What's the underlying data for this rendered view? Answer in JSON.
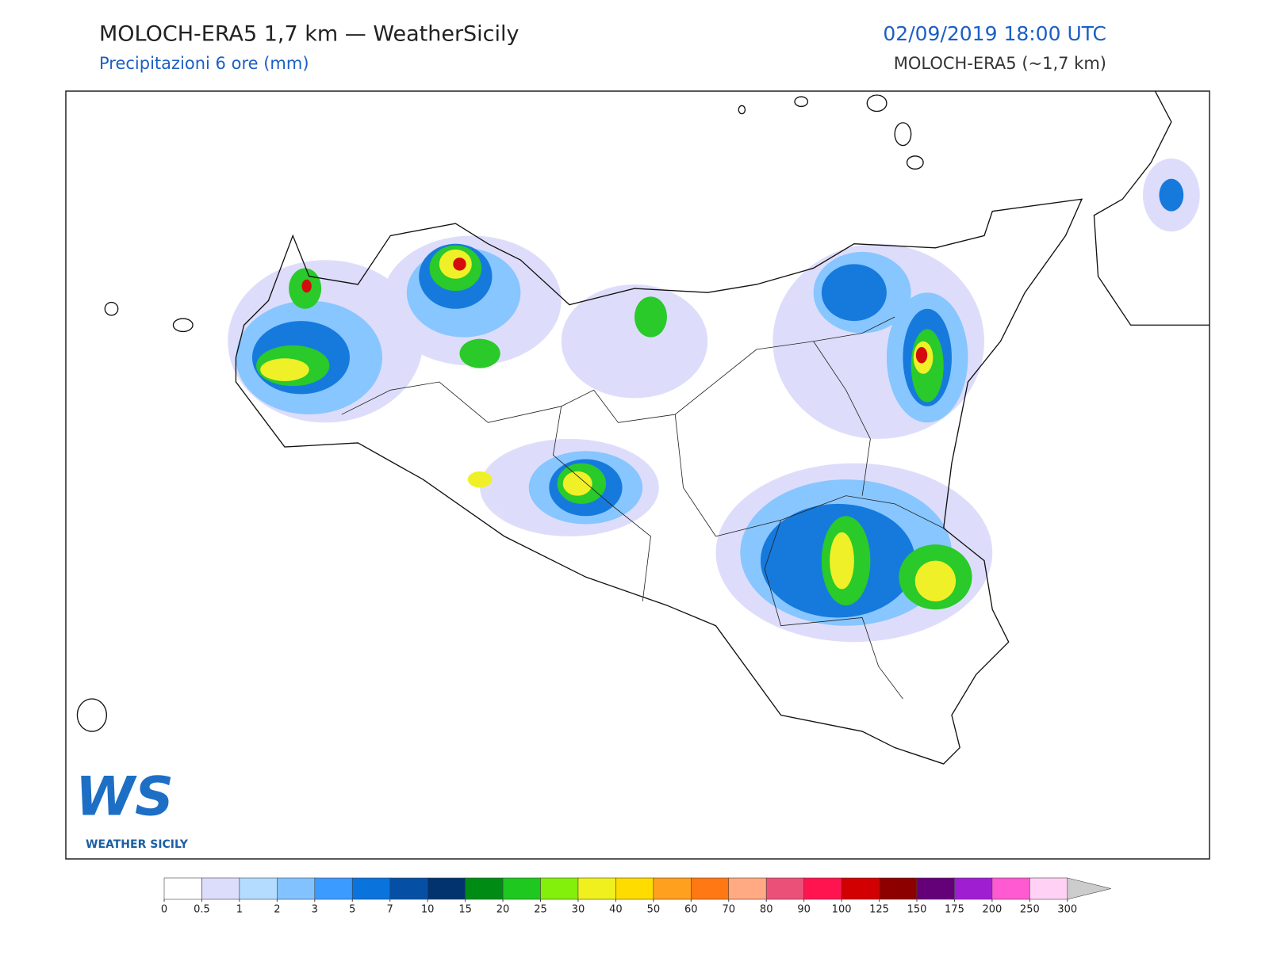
{
  "header": {
    "title": "MOLOCH-ERA5 1,7 km — WeatherSicily",
    "subtitle": "Precipitazioni 6 ore (mm)",
    "date": "02/09/2019 18:00 UTC",
    "model": "MOLOCH-ERA5 (~1,7 km)"
  },
  "logo": {
    "mark": "WS",
    "text": "WEATHER SICILY"
  },
  "colorbar": {
    "ticks": [
      0,
      0.5,
      1,
      2,
      3,
      5,
      7,
      10,
      15,
      20,
      25,
      30,
      40,
      50,
      60,
      70,
      80,
      90,
      100,
      125,
      150,
      175,
      200,
      250,
      300
    ],
    "colors": [
      "#ffffff",
      "#dcdcfb",
      "#b4dcff",
      "#82c3ff",
      "#3c9bff",
      "#0a73dc",
      "#0550a5",
      "#03336e",
      "#008c14",
      "#1ec81e",
      "#82f00a",
      "#f0f01e",
      "#ffdc00",
      "#ffa01e",
      "#ff7814",
      "#ffaa82",
      "#eb5078",
      "#ff1450",
      "#d20000",
      "#8c0000",
      "#640078",
      "#a01ed2",
      "#ff5ad2",
      "#ffd2f5"
    ],
    "extend_color": "#cccccc"
  }
}
